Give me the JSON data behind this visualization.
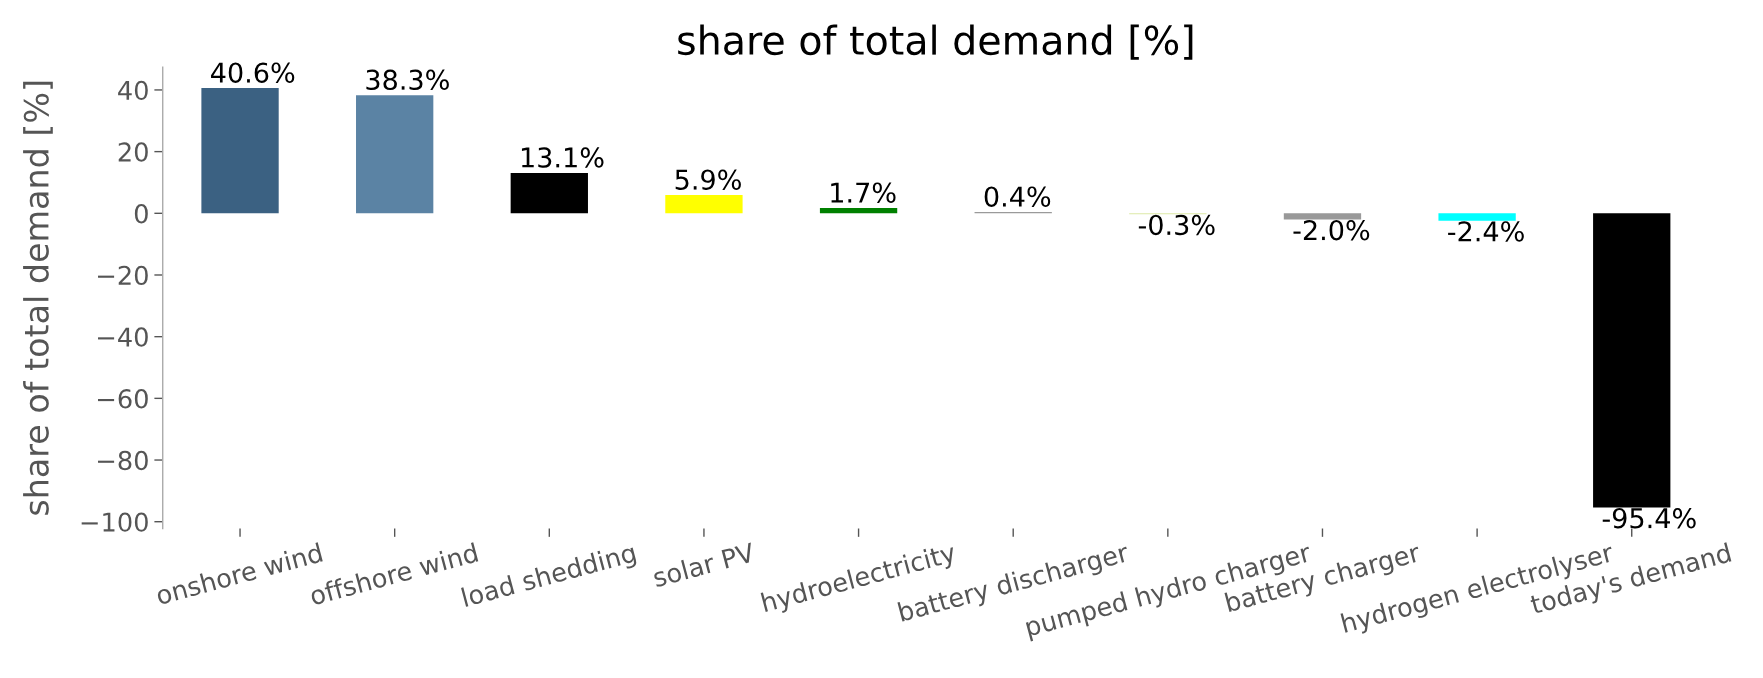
{
  "chart_data": {
    "type": "bar",
    "title": "share of total demand [%]",
    "ylabel": "share of total demand [%]",
    "categories": [
      "onshore wind",
      "offshore wind",
      "load shedding",
      "solar PV",
      "hydroelectricity",
      "battery discharger",
      "pumped hydro charger",
      "battery charger",
      "hydrogen electrolyser",
      "today's demand"
    ],
    "values": [
      40.6,
      38.3,
      13.1,
      5.9,
      1.7,
      0.4,
      -0.3,
      -2.0,
      -2.4,
      -95.4
    ],
    "colors": [
      "#3b6182",
      "#5b83a4",
      "#000000",
      "#ffff00",
      "#008000",
      "#9a9a9a",
      "#dce9a6",
      "#999999",
      "#00ffff",
      "#000000"
    ],
    "value_labels": [
      "40.6%",
      "38.3%",
      "13.1%",
      "5.9%",
      "1.7%",
      "0.4%",
      "-0.3%",
      "-2.0%",
      "-2.4%",
      "-95.4%"
    ],
    "ylim": [
      -102.2,
      47.4
    ],
    "yticks": [
      {
        "value": -100,
        "label": "−100"
      },
      {
        "value": -80,
        "label": "−80"
      },
      {
        "value": -60,
        "label": "−60"
      },
      {
        "value": -40,
        "label": "−40"
      },
      {
        "value": -20,
        "label": "−20"
      },
      0,
      20,
      40
    ],
    "grid": false
  }
}
